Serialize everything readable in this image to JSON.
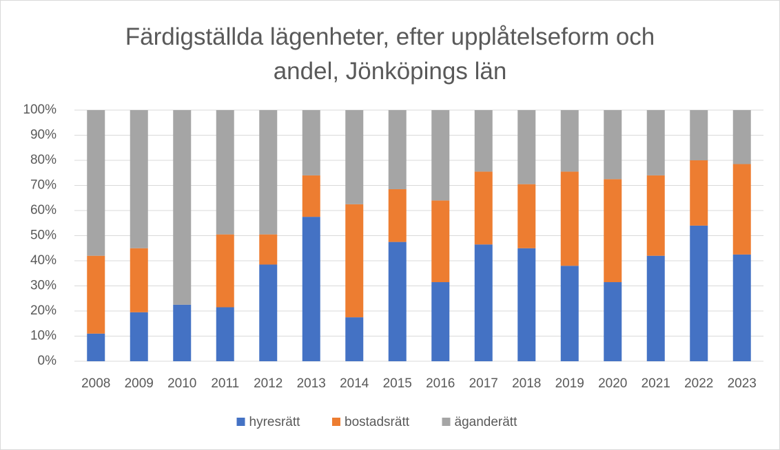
{
  "chart_data": {
    "type": "bar",
    "stacked": true,
    "title": "Färdigställda lägenheter, efter upplåtelseform och andel, Jönköpings län",
    "categories": [
      "2008",
      "2009",
      "2010",
      "2011",
      "2012",
      "2013",
      "2014",
      "2015",
      "2016",
      "2017",
      "2018",
      "2019",
      "2020",
      "2021",
      "2022",
      "2023"
    ],
    "series": [
      {
        "name": "hyresrätt",
        "color": "#4472c4",
        "values": [
          11,
          19.5,
          22.5,
          21.5,
          38.5,
          57.5,
          17.5,
          47.5,
          31.5,
          46.5,
          45,
          38,
          31.5,
          42,
          54,
          42.5
        ]
      },
      {
        "name": "bostadsrätt",
        "color": "#ed7d31",
        "values": [
          31,
          25.5,
          0,
          29,
          12,
          16.5,
          45,
          21,
          32.5,
          29,
          25.5,
          37.5,
          41,
          32,
          26,
          36
        ]
      },
      {
        "name": "äganderätt",
        "color": "#a5a5a5",
        "values": [
          58,
          55,
          77.5,
          49.5,
          49.5,
          26,
          37.5,
          31.5,
          36,
          24.5,
          29.5,
          24.5,
          27.5,
          26,
          20,
          21.5
        ]
      }
    ],
    "ylim": [
      0,
      100
    ],
    "yticks": [
      {
        "value": 0,
        "label": "0%"
      },
      {
        "value": 10,
        "label": "10%"
      },
      {
        "value": 20,
        "label": "20%"
      },
      {
        "value": 30,
        "label": "30%"
      },
      {
        "value": 40,
        "label": "40%"
      },
      {
        "value": 50,
        "label": "50%"
      },
      {
        "value": 60,
        "label": "60%"
      },
      {
        "value": 70,
        "label": "70%"
      },
      {
        "value": 80,
        "label": "80%"
      },
      {
        "value": 90,
        "label": "90%"
      },
      {
        "value": 100,
        "label": "100%"
      }
    ],
    "grid": true,
    "legend": "bottom"
  }
}
